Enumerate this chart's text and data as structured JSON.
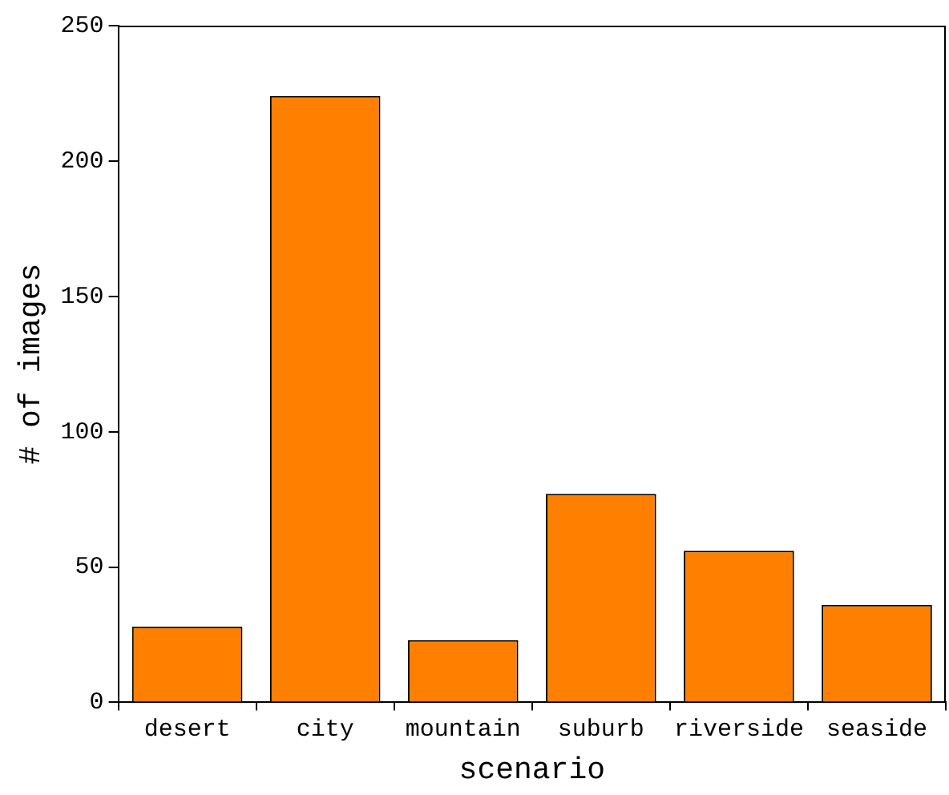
{
  "chart_data": {
    "type": "bar",
    "xlabel": "scenario",
    "ylabel": "# of images",
    "categories": [
      "desert",
      "city",
      "mountain",
      "suburb",
      "riverside",
      "seaside"
    ],
    "values": [
      28,
      224,
      23,
      77,
      56,
      36
    ],
    "color": "#ff7f00",
    "ylim": [
      0,
      250
    ],
    "yticks": [
      0,
      50,
      100,
      150,
      200,
      250
    ],
    "grid": false,
    "legend": false
  }
}
